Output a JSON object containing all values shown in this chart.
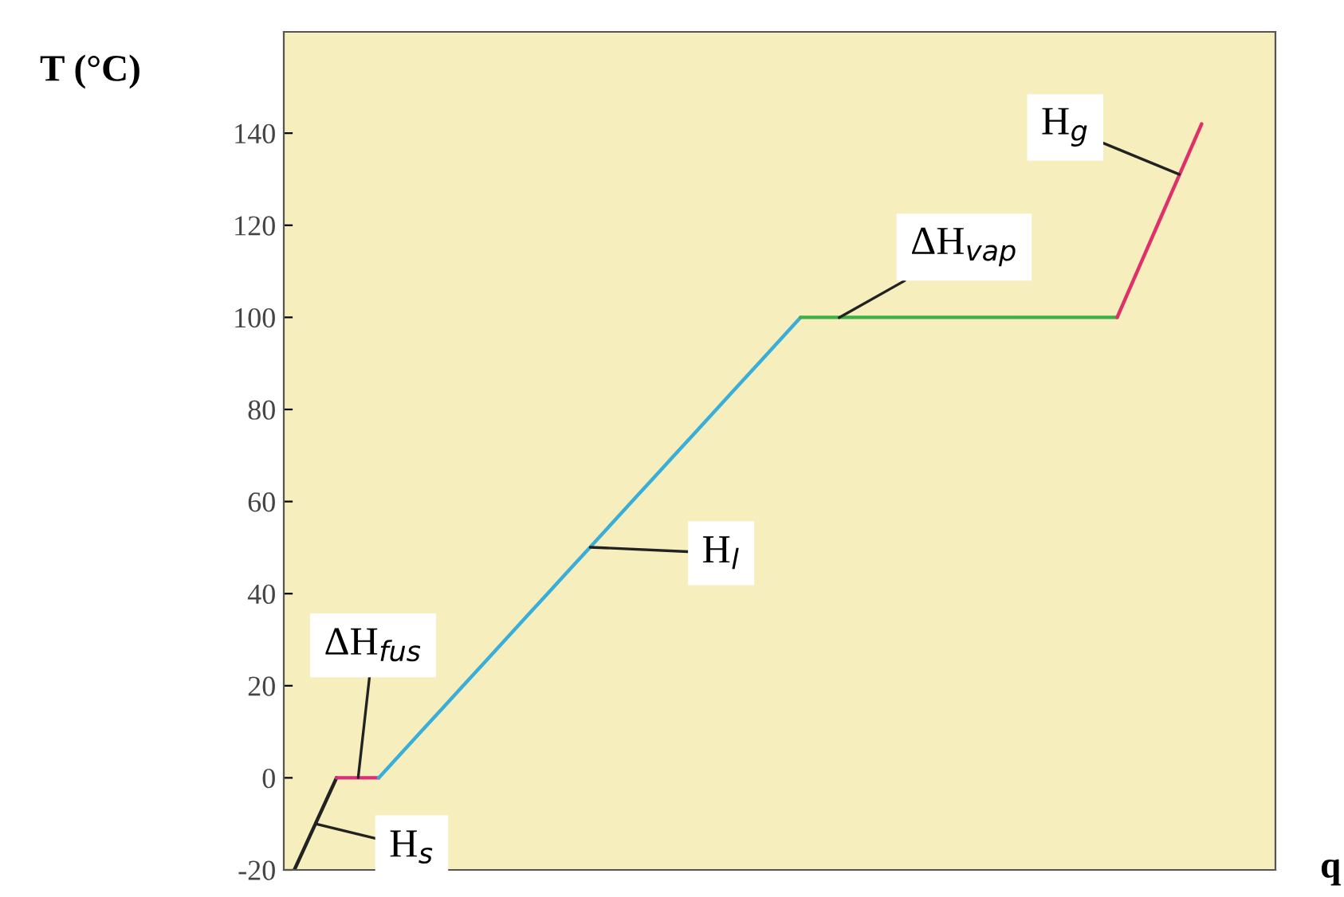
{
  "chart_data": {
    "type": "line",
    "ylabel": "T (°C)",
    "xlabel": "q",
    "tick_labels": "y",
    "ylim": [
      -20,
      162
    ],
    "yticks": [
      -20,
      0,
      20,
      40,
      60,
      80,
      100,
      120,
      140
    ],
    "grid": false,
    "legend": false,
    "marker": "none",
    "line_style": "solid",
    "categories": [
      null,
      null,
      null,
      null,
      null,
      null,
      null,
      null,
      null,
      null,
      null,
      null,
      null,
      null,
      null,
      null,
      null,
      null,
      null,
      null,
      null,
      null,
      null,
      null,
      null,
      null,
      null,
      null,
      null,
      null,
      null,
      null,
      null,
      null,
      null,
      null,
      null,
      null,
      null,
      null,
      null,
      null,
      null,
      null,
      null,
      null,
      null
    ],
    "series": [
      {
        "color": "#222222",
        "values": [
          -20,
          -10,
          0,
          null,
          null,
          null,
          null,
          null,
          null,
          null,
          null,
          null,
          null,
          null,
          null,
          null,
          null,
          null,
          null,
          null,
          null,
          null,
          null,
          null,
          null,
          null,
          null,
          null,
          null,
          null,
          null,
          null,
          null,
          null,
          null,
          null,
          null,
          null,
          null,
          null,
          null,
          null,
          null,
          null,
          null,
          null,
          null
        ]
      },
      {
        "color": "#d6307a",
        "values": [
          null,
          null,
          0,
          0,
          0,
          null,
          null,
          null,
          null,
          null,
          null,
          null,
          null,
          null,
          null,
          null,
          null,
          null,
          null,
          null,
          null,
          null,
          null,
          null,
          null,
          null,
          null,
          null,
          null,
          null,
          null,
          null,
          null,
          null,
          null,
          null,
          null,
          null,
          null,
          null,
          null,
          null,
          null,
          null,
          null,
          null,
          null
        ]
      },
      {
        "color": "#3aaed8",
        "values": [
          null,
          null,
          null,
          null,
          0,
          5,
          10,
          15,
          20,
          25,
          30,
          35,
          40,
          45,
          50,
          55,
          60,
          65,
          70,
          75,
          80,
          85,
          90,
          95,
          100,
          null,
          null,
          null,
          null,
          null,
          null,
          null,
          null,
          null,
          null,
          null,
          null,
          null,
          null,
          null,
          null,
          null,
          null,
          null,
          null,
          null,
          null
        ]
      },
      {
        "color": "#3cb043",
        "values": [
          null,
          null,
          null,
          null,
          null,
          null,
          null,
          null,
          null,
          null,
          null,
          null,
          null,
          null,
          null,
          null,
          null,
          null,
          null,
          null,
          null,
          null,
          null,
          null,
          100,
          100,
          100,
          100,
          100,
          100,
          100,
          100,
          100,
          100,
          100,
          100,
          100,
          100,
          100,
          100,
          null,
          null,
          null,
          null,
          null,
          null,
          null
        ]
      },
      {
        "color": "#e0306a",
        "values": [
          null,
          null,
          null,
          null,
          null,
          null,
          null,
          null,
          null,
          null,
          null,
          null,
          null,
          null,
          null,
          null,
          null,
          null,
          null,
          null,
          null,
          null,
          null,
          null,
          null,
          null,
          null,
          null,
          null,
          null,
          null,
          null,
          null,
          null,
          null,
          null,
          null,
          null,
          null,
          100,
          110.5,
          121,
          131.5,
          142,
          null,
          null,
          null
        ]
      }
    ],
    "annotations": [
      "H$_{s}$",
      "ΔH$_{fus}$",
      "H$_{l}$",
      "ΔH$_{vap}$",
      "H$_{g}$"
    ]
  }
}
